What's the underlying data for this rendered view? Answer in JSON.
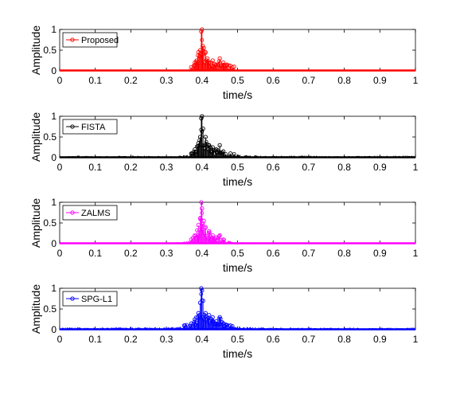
{
  "chart_data": [
    {
      "type": "line",
      "ylabel": "Amplitude",
      "xlabel": "time/s",
      "xlim": [
        0,
        1
      ],
      "ylim": [
        0,
        1
      ],
      "xticks": [
        "0",
        "0.1",
        "0.2",
        "0.3",
        "0.4",
        "0.5",
        "0.6",
        "0.7",
        "0.8",
        "0.9",
        "1"
      ],
      "yticks": [
        "0",
        "0.5",
        "1"
      ],
      "legend": {
        "label": "Proposed",
        "placement": "top-left"
      },
      "color": "#ff0000",
      "grid": false,
      "series": [
        {
          "name": "Proposed",
          "x": [
            0.0,
            0.1,
            0.2,
            0.3,
            0.36,
            0.38,
            0.385,
            0.39,
            0.395,
            0.398,
            0.4,
            0.402,
            0.405,
            0.41,
            0.415,
            0.42,
            0.43,
            0.44,
            0.45,
            0.46,
            0.47,
            0.48,
            0.49,
            0.5,
            0.6,
            0.7,
            0.8,
            0.9,
            1.0
          ],
          "y": [
            0.0,
            0.0,
            0.0,
            0.0,
            0.02,
            0.2,
            0.25,
            0.45,
            0.5,
            0.95,
            1.0,
            0.6,
            0.55,
            0.45,
            0.3,
            0.2,
            0.25,
            0.15,
            0.3,
            0.2,
            0.15,
            0.12,
            0.1,
            0.02,
            0.0,
            0.0,
            0.0,
            0.0,
            0.0
          ]
        }
      ]
    },
    {
      "type": "line",
      "ylabel": "Amplitude",
      "xlabel": "time/s",
      "xlim": [
        0,
        1
      ],
      "ylim": [
        0,
        1
      ],
      "xticks": [
        "0",
        "0.1",
        "0.2",
        "0.3",
        "0.4",
        "0.5",
        "0.6",
        "0.7",
        "0.8",
        "0.9",
        "1"
      ],
      "yticks": [
        "0",
        "0.5",
        "1"
      ],
      "legend": {
        "label": "FISTA",
        "placement": "top-left"
      },
      "color": "#000000",
      "grid": false,
      "series": [
        {
          "name": "FISTA",
          "x": [
            0.0,
            0.05,
            0.1,
            0.2,
            0.3,
            0.35,
            0.37,
            0.38,
            0.39,
            0.395,
            0.398,
            0.4,
            0.403,
            0.41,
            0.42,
            0.43,
            0.44,
            0.45,
            0.46,
            0.48,
            0.5,
            0.55,
            0.6,
            0.7,
            0.8,
            0.9,
            1.0
          ],
          "y": [
            0.03,
            0.05,
            0.04,
            0.05,
            0.04,
            0.06,
            0.1,
            0.2,
            0.35,
            0.5,
            0.95,
            1.0,
            0.7,
            0.5,
            0.3,
            0.25,
            0.2,
            0.3,
            0.15,
            0.1,
            0.08,
            0.06,
            0.05,
            0.05,
            0.04,
            0.05,
            0.05
          ]
        }
      ]
    },
    {
      "type": "line",
      "ylabel": "Amplitude",
      "xlabel": "time/s",
      "xlim": [
        0,
        1
      ],
      "ylim": [
        0,
        1
      ],
      "xticks": [
        "0",
        "0.1",
        "0.2",
        "0.3",
        "0.4",
        "0.5",
        "0.6",
        "0.7",
        "0.8",
        "0.9",
        "1"
      ],
      "yticks": [
        "0",
        "0.5",
        "1"
      ],
      "legend": {
        "label": "ZALMS",
        "placement": "top-left"
      },
      "color": "#ff00ff",
      "grid": false,
      "series": [
        {
          "name": "ZALMS",
          "x": [
            0.0,
            0.1,
            0.2,
            0.3,
            0.35,
            0.37,
            0.38,
            0.39,
            0.395,
            0.398,
            0.4,
            0.405,
            0.41,
            0.42,
            0.43,
            0.44,
            0.45,
            0.46,
            0.48,
            0.5,
            0.55,
            0.6,
            0.7,
            0.8,
            0.9,
            1.0
          ],
          "y": [
            0.01,
            0.01,
            0.02,
            0.02,
            0.05,
            0.1,
            0.2,
            0.45,
            0.6,
            1.0,
            0.85,
            0.55,
            0.4,
            0.3,
            0.2,
            0.15,
            0.2,
            0.1,
            0.06,
            0.04,
            0.03,
            0.02,
            0.02,
            0.02,
            0.02,
            0.02
          ]
        }
      ]
    },
    {
      "type": "line",
      "ylabel": "Amplitude",
      "xlabel": "time/s",
      "xlim": [
        0,
        1
      ],
      "ylim": [
        0,
        1
      ],
      "xticks": [
        "0",
        "0.1",
        "0.2",
        "0.3",
        "0.4",
        "0.5",
        "0.6",
        "0.7",
        "0.8",
        "0.9",
        "1"
      ],
      "yticks": [
        "0",
        "0.5",
        "1"
      ],
      "legend": {
        "label": "SPG-L1",
        "placement": "top-left"
      },
      "color": "#0000ff",
      "grid": false,
      "series": [
        {
          "name": "SPG-L1",
          "x": [
            0.0,
            0.05,
            0.1,
            0.2,
            0.3,
            0.35,
            0.37,
            0.38,
            0.39,
            0.395,
            0.398,
            0.4,
            0.403,
            0.41,
            0.42,
            0.43,
            0.44,
            0.45,
            0.46,
            0.48,
            0.5,
            0.55,
            0.6,
            0.7,
            0.8,
            0.9,
            1.0
          ],
          "y": [
            0.05,
            0.06,
            0.05,
            0.06,
            0.06,
            0.1,
            0.15,
            0.25,
            0.4,
            0.65,
            1.0,
            0.95,
            0.7,
            0.4,
            0.35,
            0.3,
            0.2,
            0.3,
            0.15,
            0.1,
            0.08,
            0.06,
            0.05,
            0.05,
            0.05,
            0.05,
            0.05
          ]
        }
      ]
    }
  ]
}
